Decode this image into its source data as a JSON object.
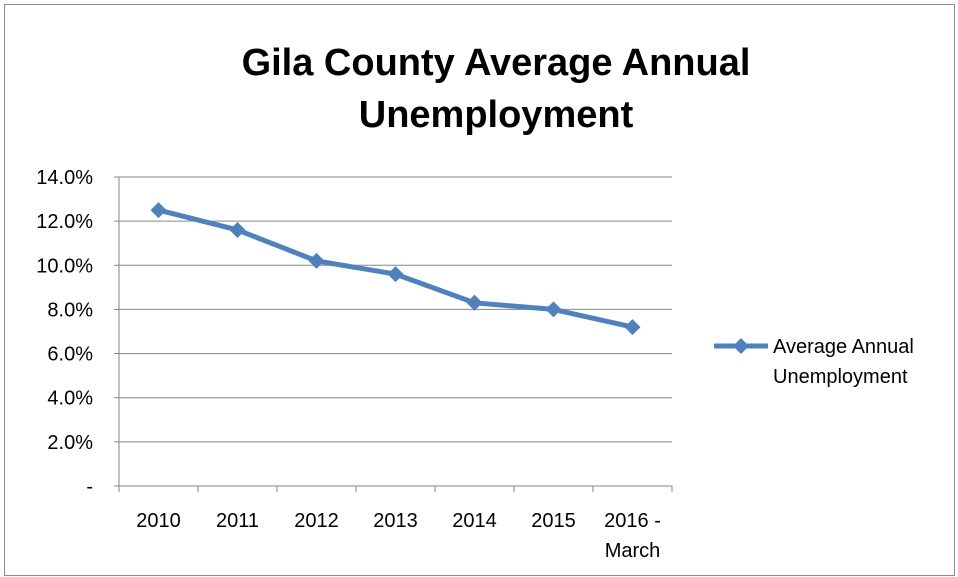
{
  "chart_data": {
    "type": "line",
    "title": [
      "Gila County Average Annual",
      "Unemployment"
    ],
    "categories": [
      [
        "2010"
      ],
      [
        "2011"
      ],
      [
        "2012"
      ],
      [
        "2013"
      ],
      [
        "2014"
      ],
      [
        "2015"
      ],
      [
        "2016 -",
        "March"
      ]
    ],
    "series": [
      {
        "name": [
          "Average Annual",
          "Unemployment"
        ],
        "values": [
          12.5,
          11.6,
          10.2,
          9.6,
          8.3,
          8.0,
          7.2
        ],
        "color": "#4f81bd",
        "marker": "diamond"
      }
    ],
    "ylim": [
      0,
      14
    ],
    "yticks": [
      {
        "value": 0,
        "label": "-"
      },
      {
        "value": 2,
        "label": "2.0%"
      },
      {
        "value": 4,
        "label": "4.0%"
      },
      {
        "value": 6,
        "label": "6.0%"
      },
      {
        "value": 8,
        "label": "8.0%"
      },
      {
        "value": 10,
        "label": "10.0%"
      },
      {
        "value": 12,
        "label": "12.0%"
      },
      {
        "value": 14,
        "label": "14.0%"
      }
    ],
    "grid": true,
    "legend_position": "right",
    "colors": {
      "gridline": "#868686",
      "axis": "#868686",
      "frame": "#8c8c8c"
    }
  }
}
